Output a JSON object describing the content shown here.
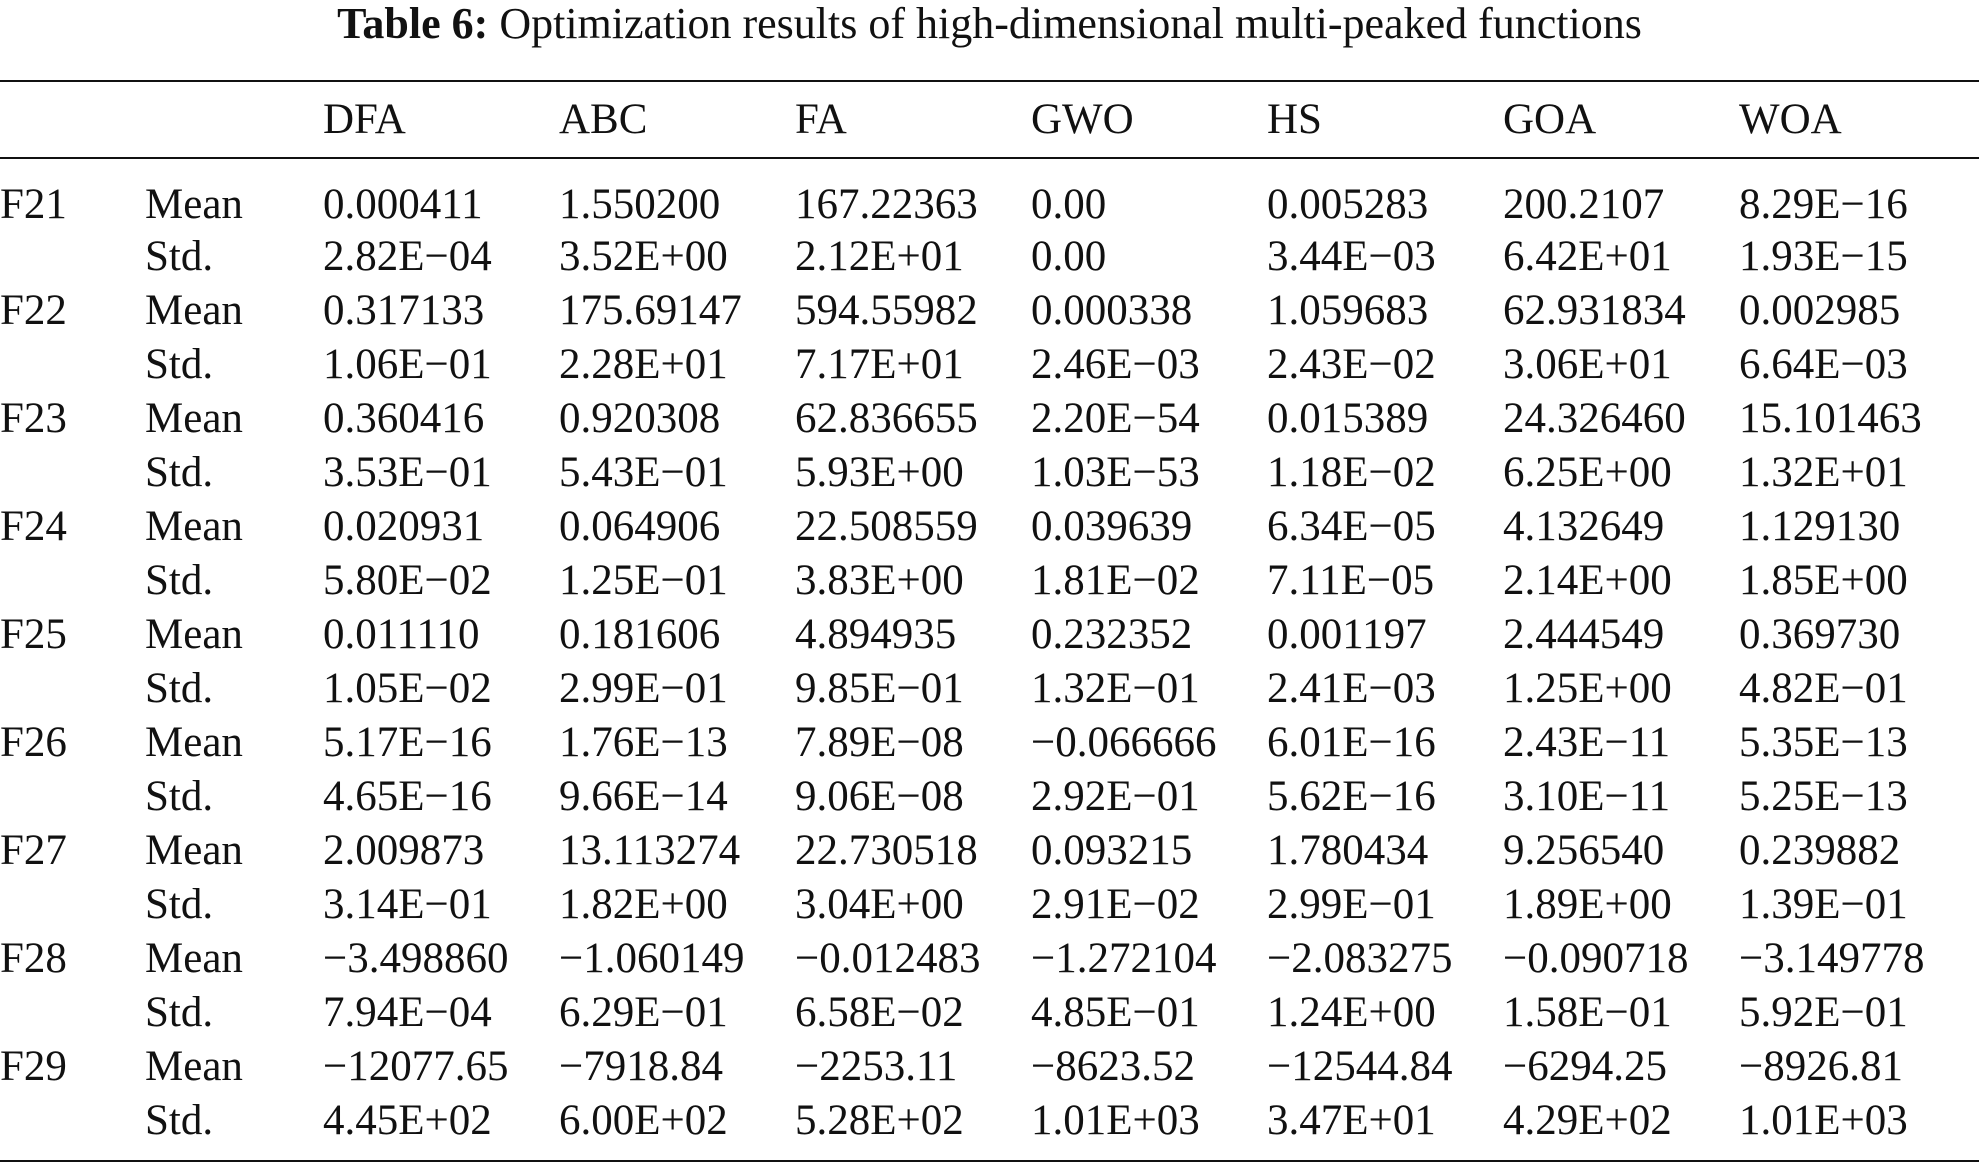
{
  "caption": {
    "label": "Table 6:",
    "text": "Optimization results of high-dimensional multi-peaked functions"
  },
  "columns": [
    "DFA",
    "ABC",
    "FA",
    "GWO",
    "HS",
    "GOA",
    "WOA"
  ],
  "rows": [
    {
      "func": "F21",
      "stat": "Mean",
      "values": [
        "0.000411",
        "1.550200",
        "167.22363",
        "0.00",
        "0.005283",
        "200.2107",
        "8.29E−16"
      ]
    },
    {
      "func": "",
      "stat": "Std.",
      "values": [
        "2.82E−04",
        "3.52E+00",
        "2.12E+01",
        "0.00",
        "3.44E−03",
        "6.42E+01",
        "1.93E−15"
      ]
    },
    {
      "func": "F22",
      "stat": "Mean",
      "values": [
        "0.317133",
        "175.69147",
        "594.55982",
        "0.000338",
        "1.059683",
        "62.931834",
        "0.002985"
      ]
    },
    {
      "func": "",
      "stat": "Std.",
      "values": [
        "1.06E−01",
        "2.28E+01",
        "7.17E+01",
        "2.46E−03",
        "2.43E−02",
        "3.06E+01",
        "6.64E−03"
      ]
    },
    {
      "func": "F23",
      "stat": "Mean",
      "values": [
        "0.360416",
        "0.920308",
        "62.836655",
        "2.20E−54",
        "0.015389",
        "24.326460",
        "15.101463"
      ]
    },
    {
      "func": "",
      "stat": "Std.",
      "values": [
        "3.53E−01",
        "5.43E−01",
        "5.93E+00",
        "1.03E−53",
        "1.18E−02",
        "6.25E+00",
        "1.32E+01"
      ]
    },
    {
      "func": "F24",
      "stat": "Mean",
      "values": [
        "0.020931",
        "0.064906",
        "22.508559",
        "0.039639",
        "6.34E−05",
        "4.132649",
        "1.129130"
      ]
    },
    {
      "func": "",
      "stat": "Std.",
      "values": [
        "5.80E−02",
        "1.25E−01",
        "3.83E+00",
        "1.81E−02",
        "7.11E−05",
        "2.14E+00",
        "1.85E+00"
      ]
    },
    {
      "func": "F25",
      "stat": "Mean",
      "values": [
        "0.011110",
        "0.181606",
        "4.894935",
        "0.232352",
        "0.001197",
        "2.444549",
        "0.369730"
      ]
    },
    {
      "func": "",
      "stat": "Std.",
      "values": [
        "1.05E−02",
        "2.99E−01",
        "9.85E−01",
        "1.32E−01",
        "2.41E−03",
        "1.25E+00",
        "4.82E−01"
      ]
    },
    {
      "func": "F26",
      "stat": "Mean",
      "values": [
        "5.17E−16",
        "1.76E−13",
        "7.89E−08",
        "−0.066666",
        "6.01E−16",
        "2.43E−11",
        "5.35E−13"
      ]
    },
    {
      "func": "",
      "stat": "Std.",
      "values": [
        "4.65E−16",
        "9.66E−14",
        "9.06E−08",
        "2.92E−01",
        "5.62E−16",
        "3.10E−11",
        "5.25E−13"
      ]
    },
    {
      "func": "F27",
      "stat": "Mean",
      "values": [
        "2.009873",
        "13.113274",
        "22.730518",
        "0.093215",
        "1.780434",
        "9.256540",
        "0.239882"
      ]
    },
    {
      "func": "",
      "stat": "Std.",
      "values": [
        "3.14E−01",
        "1.82E+00",
        "3.04E+00",
        "2.91E−02",
        "2.99E−01",
        "1.89E+00",
        "1.39E−01"
      ]
    },
    {
      "func": "F28",
      "stat": "Mean",
      "values": [
        "−3.498860",
        "−1.060149",
        "−0.012483",
        "−1.272104",
        "−2.083275",
        "−0.090718",
        "−3.149778"
      ]
    },
    {
      "func": "",
      "stat": "Std.",
      "values": [
        "7.94E−04",
        "6.29E−01",
        "6.58E−02",
        "4.85E−01",
        "1.24E+00",
        "1.58E−01",
        "5.92E−01"
      ]
    },
    {
      "func": "F29",
      "stat": "Mean",
      "values": [
        "−12077.65",
        "−7918.84",
        "−2253.11",
        "−8623.52",
        "−12544.84",
        "−6294.25",
        "−8926.81"
      ]
    },
    {
      "func": "",
      "stat": "Std.",
      "values": [
        "4.45E+02",
        "6.00E+02",
        "5.28E+02",
        "1.01E+03",
        "3.47E+01",
        "4.29E+02",
        "1.01E+03"
      ]
    }
  ]
}
